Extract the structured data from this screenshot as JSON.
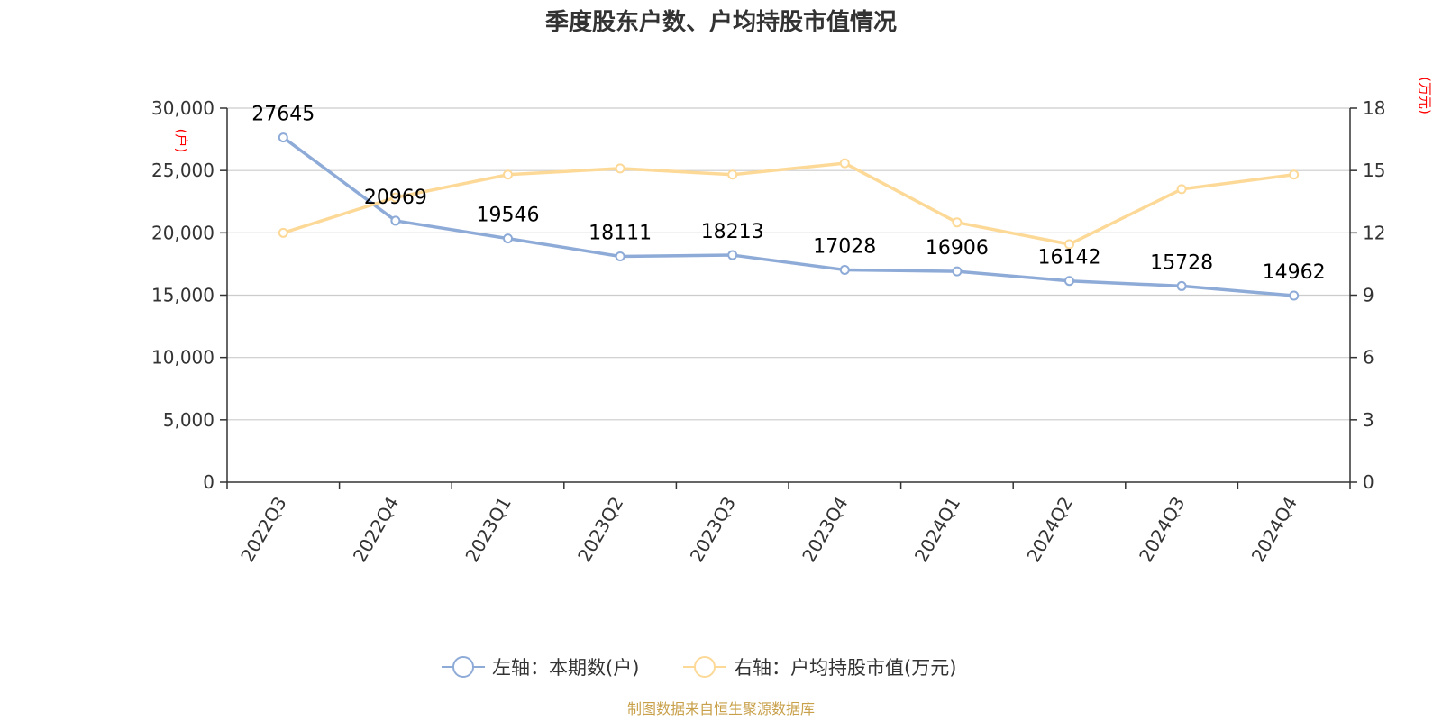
{
  "chart_data": {
    "type": "line",
    "title": "季度股东户数、户均持股市值情况",
    "categories": [
      "2022Q3",
      "2022Q4",
      "2023Q1",
      "2023Q2",
      "2023Q3",
      "2023Q4",
      "2024Q1",
      "2024Q2",
      "2024Q3",
      "2024Q4"
    ],
    "series": [
      {
        "name": "左轴：本期数(户)",
        "axis": "left",
        "color": "#8eabd8",
        "values": [
          27645,
          20969,
          19546,
          18111,
          18213,
          17028,
          16906,
          16142,
          15728,
          14962
        ],
        "show_labels": true
      },
      {
        "name": "右轴：户均持股市值(万元)",
        "axis": "right",
        "color": "#fdd998",
        "values": [
          12.0,
          13.7,
          14.8,
          15.1,
          14.8,
          15.35,
          12.5,
          11.45,
          14.1,
          14.8
        ],
        "show_labels": false
      }
    ],
    "y_left": {
      "unit": "(户)",
      "ylim": [
        0,
        30000
      ],
      "ticks": [
        0,
        5000,
        10000,
        15000,
        20000,
        25000,
        30000
      ],
      "tick_labels": [
        "0",
        "5,000",
        "10,000",
        "15,000",
        "20,000",
        "25,000",
        "30,000"
      ]
    },
    "y_right": {
      "unit": "(万元)",
      "ylim": [
        0,
        18
      ],
      "ticks": [
        0,
        3,
        6,
        9,
        12,
        15,
        18
      ],
      "tick_labels": [
        "0",
        "3",
        "6",
        "9",
        "12",
        "15",
        "18"
      ]
    },
    "grid": true,
    "legend_position": "bottom-center",
    "source": "制图数据来自恒生聚源数据库"
  }
}
